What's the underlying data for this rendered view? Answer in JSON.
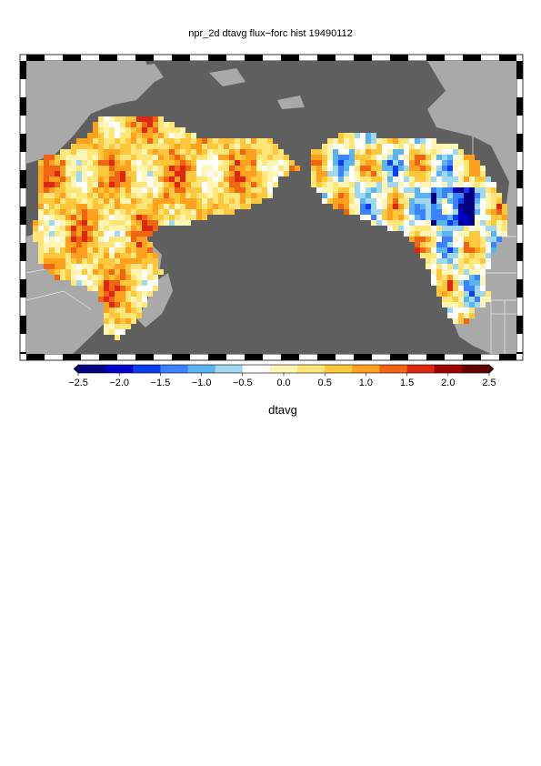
{
  "title": "npr_2d dtavg flux−forc hist 19490112",
  "colorbar": {
    "label": "dtavg",
    "min": -2.5,
    "max": 2.5,
    "ticks": [
      "−2.5",
      "−2.0",
      "−1.5",
      "−1.0",
      "−0.5",
      "0.0",
      "0.5",
      "1.0",
      "1.5",
      "2.0",
      "2.5"
    ],
    "colors": [
      "#000080",
      "#0000c8",
      "#0a3cf0",
      "#3c82ff",
      "#5ab4f0",
      "#a0d8f0",
      "#ffffff",
      "#fff5b4",
      "#ffe678",
      "#ffc83c",
      "#ffa01e",
      "#f06414",
      "#dc2810",
      "#a00000",
      "#640000"
    ]
  },
  "map": {
    "ocean_color": "#5f5f5f",
    "land_color": "#a9a9a9"
  }
}
